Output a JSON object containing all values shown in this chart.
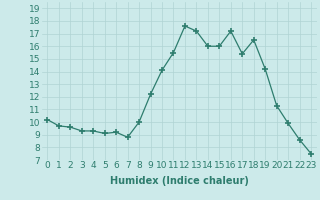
{
  "x": [
    0,
    1,
    2,
    3,
    4,
    5,
    6,
    7,
    8,
    9,
    10,
    11,
    12,
    13,
    14,
    15,
    16,
    17,
    18,
    19,
    20,
    21,
    22,
    23
  ],
  "y": [
    10.2,
    9.7,
    9.6,
    9.3,
    9.3,
    9.1,
    9.2,
    8.8,
    10.0,
    12.2,
    14.1,
    15.5,
    17.6,
    17.2,
    16.0,
    16.0,
    17.2,
    15.4,
    16.5,
    14.2,
    11.3,
    9.9,
    8.6,
    7.5
  ],
  "xlabel": "Humidex (Indice chaleur)",
  "xlim": [
    -0.5,
    23.5
  ],
  "ylim": [
    7,
    19.5
  ],
  "yticks": [
    7,
    8,
    9,
    10,
    11,
    12,
    13,
    14,
    15,
    16,
    17,
    18,
    19
  ],
  "xticks": [
    0,
    1,
    2,
    3,
    4,
    5,
    6,
    7,
    8,
    9,
    10,
    11,
    12,
    13,
    14,
    15,
    16,
    17,
    18,
    19,
    20,
    21,
    22,
    23
  ],
  "xtick_labels": [
    "0",
    "1",
    "2",
    "3",
    "4",
    "5",
    "6",
    "7",
    "8",
    "9",
    "10",
    "11",
    "12",
    "13",
    "14",
    "15",
    "16",
    "17",
    "18",
    "19",
    "20",
    "21",
    "22",
    "23"
  ],
  "line_color": "#2e7d6e",
  "marker": "+",
  "marker_size": 4,
  "bg_color": "#cceaea",
  "grid_color": "#b0d4d4",
  "font_color": "#2e7d6e",
  "xlabel_fontsize": 7,
  "tick_fontsize": 6.5
}
